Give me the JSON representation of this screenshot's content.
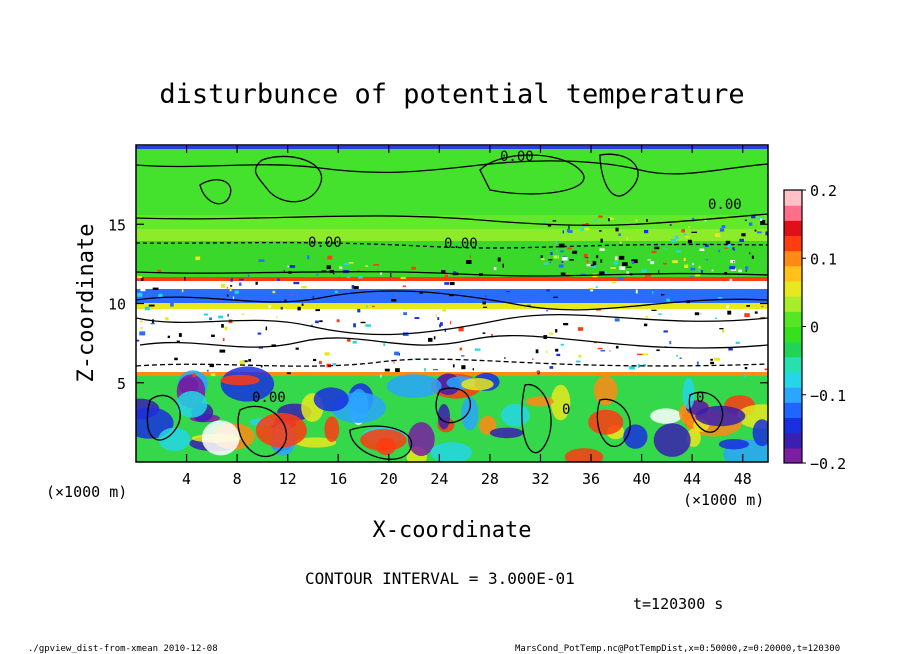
{
  "chart_data": {
    "type": "heatmap",
    "title": "disturbunce of potential temperature",
    "xlabel": "X-coordinate",
    "ylabel": "Z-coordinate",
    "x_unit": "(×1000 m)",
    "y_unit": "(×1000 m)",
    "xlim": [
      0,
      50
    ],
    "ylim": [
      0,
      20
    ],
    "x_ticks": [
      4,
      8,
      12,
      16,
      20,
      24,
      28,
      32,
      36,
      40,
      44,
      48
    ],
    "y_ticks": [
      5,
      10,
      15
    ],
    "colorbar": {
      "vmin": -0.2,
      "vmax": 0.2,
      "ticks": [
        "0.2",
        "0.1",
        "0",
        "−0.1",
        "−0.2"
      ],
      "tick_values": [
        0.2,
        0.1,
        0,
        -0.1,
        -0.2
      ],
      "colors": [
        "#7a1fa2",
        "#3b1fb0",
        "#1a2fe0",
        "#1e66ff",
        "#2aa6ff",
        "#25d6e6",
        "#27e0b0",
        "#22d456",
        "#37e01c",
        "#56e626",
        "#a8ec2a",
        "#e8e81e",
        "#ffc21a",
        "#ff8a14",
        "#ff3b10",
        "#e0101a",
        "#ff6e8a",
        "#ffc0c8"
      ]
    },
    "contour_labels": [
      "0.00",
      "0.00",
      "0.00",
      "0.00",
      "0.00",
      "0",
      "0"
    ],
    "contour_interval": "CONTOUR INTERVAL = 3.000E-01",
    "time": "t=120300 s"
  },
  "footer": {
    "left": "./gpview_dist-from-xmean  2010-12-08",
    "right": "MarsCond_PotTemp.nc@PotTempDist,x=0:50000,z=0:20000,t=120300"
  }
}
